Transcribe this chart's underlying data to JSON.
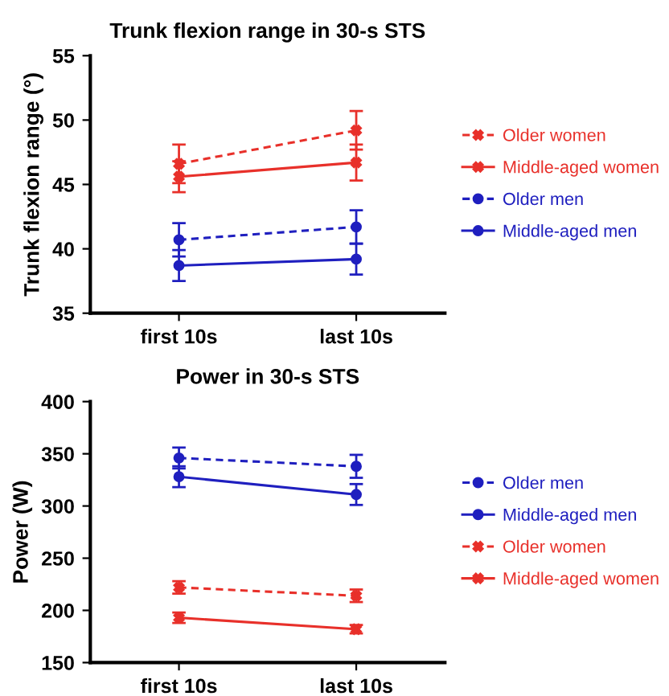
{
  "chart_data": [
    {
      "type": "line",
      "title": "Trunk flexion range in 30-s STS",
      "ylabel": "Trunk flexion range (°)",
      "categories": [
        "first 10s",
        "last 10s"
      ],
      "ylim": [
        35,
        55
      ],
      "yticks": [
        35,
        40,
        45,
        50,
        55
      ],
      "grid": false,
      "legend": "right",
      "series": [
        {
          "name": "Older women",
          "color": "#e8302a",
          "values": [
            46.6,
            49.2
          ],
          "errors": [
            1.5,
            1.5
          ],
          "marker": "cross",
          "line_style": "dashed"
        },
        {
          "name": "Middle-aged women",
          "color": "#e8302a",
          "values": [
            45.6,
            46.7
          ],
          "errors": [
            1.2,
            1.4
          ],
          "marker": "cross",
          "line_style": "solid"
        },
        {
          "name": "Older men",
          "color": "#1f1fbf",
          "values": [
            40.7,
            41.7
          ],
          "errors": [
            1.3,
            1.3
          ],
          "marker": "circle",
          "line_style": "dashed"
        },
        {
          "name": "Middle-aged men",
          "color": "#1f1fbf",
          "values": [
            38.7,
            39.2
          ],
          "errors": [
            1.2,
            1.2
          ],
          "marker": "circle",
          "line_style": "solid"
        }
      ]
    },
    {
      "type": "line",
      "title": "Power in 30-s STS",
      "ylabel": "Power (W)",
      "categories": [
        "first 10s",
        "last 10s"
      ],
      "ylim": [
        150,
        400
      ],
      "yticks": [
        150,
        200,
        250,
        300,
        350,
        400
      ],
      "grid": false,
      "legend": "right",
      "series": [
        {
          "name": "Older men",
          "color": "#1f1fbf",
          "values": [
            346,
            338
          ],
          "errors": [
            10,
            11
          ],
          "marker": "circle",
          "line_style": "dashed"
        },
        {
          "name": "Middle-aged men",
          "color": "#1f1fbf",
          "values": [
            328,
            311
          ],
          "errors": [
            10,
            10
          ],
          "marker": "circle",
          "line_style": "solid"
        },
        {
          "name": "Older women",
          "color": "#e8302a",
          "values": [
            222,
            214
          ],
          "errors": [
            6,
            6
          ],
          "marker": "cross",
          "line_style": "dashed"
        },
        {
          "name": "Middle-aged women",
          "color": "#e8302a",
          "values": [
            193,
            182
          ],
          "errors": [
            5,
            4
          ],
          "marker": "cross",
          "line_style": "solid"
        }
      ]
    }
  ]
}
